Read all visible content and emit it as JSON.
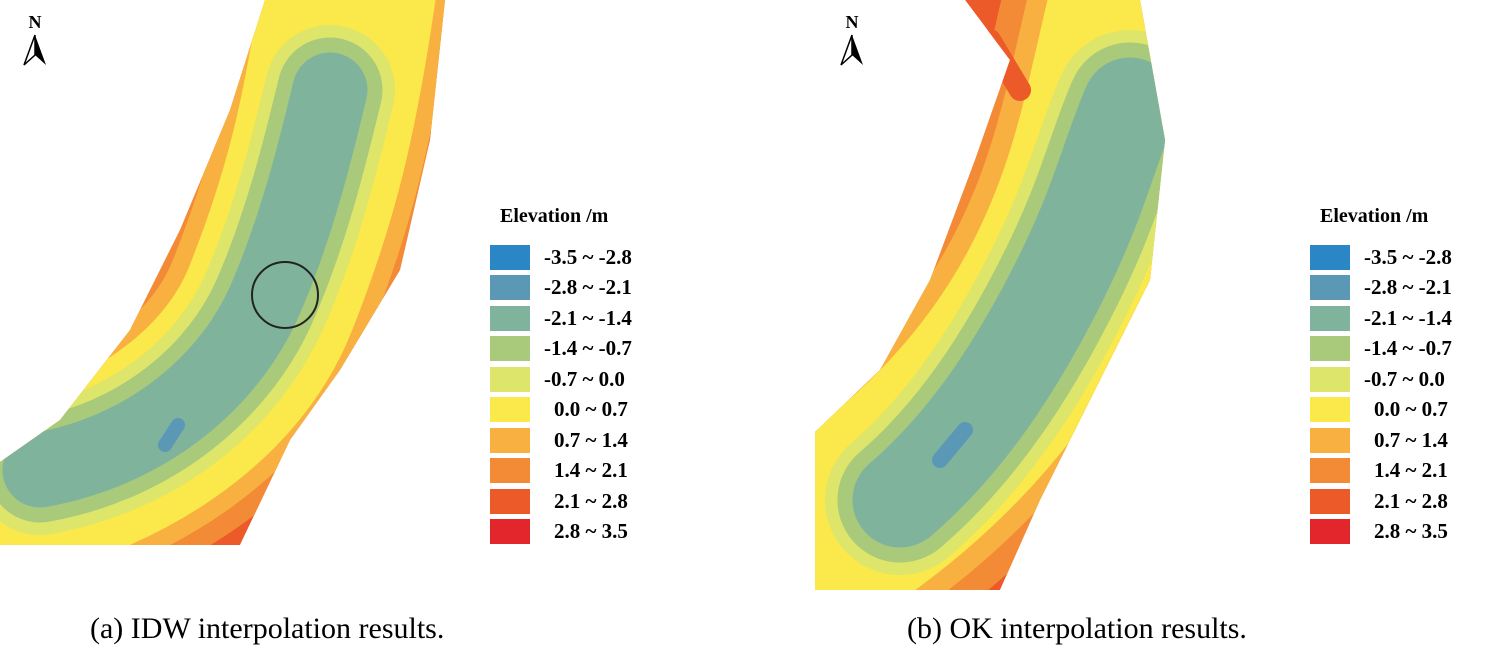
{
  "north_label": "N",
  "legend": {
    "title": "Elevation /m",
    "classes": [
      {
        "label": "-3.5 ~ -2.8",
        "color": "#2b86c6"
      },
      {
        "label": "-2.8 ~ -2.1",
        "color": "#5a98b5"
      },
      {
        "label": "-2.1 ~ -1.4",
        "color": "#80b39b"
      },
      {
        "label": "-1.4 ~ -0.7",
        "color": "#a9c97b"
      },
      {
        "label": "-0.7 ~ 0.0",
        "color": "#dde56b"
      },
      {
        "label": "0.0 ~ 0.7",
        "color": "#fbe84b"
      },
      {
        "label": "0.7 ~ 1.4",
        "color": "#f8b041"
      },
      {
        "label": "1.4 ~ 2.1",
        "color": "#f38a36"
      },
      {
        "label": "2.1 ~ 2.8",
        "color": "#ec5a29"
      },
      {
        "label": "2.8 ~ 3.5",
        "color": "#e2262b"
      }
    ]
  },
  "panels": [
    {
      "caption": "(a) IDW interpolation results.",
      "annotation": "circle"
    },
    {
      "caption": "(b) OK interpolation results."
    }
  ]
}
